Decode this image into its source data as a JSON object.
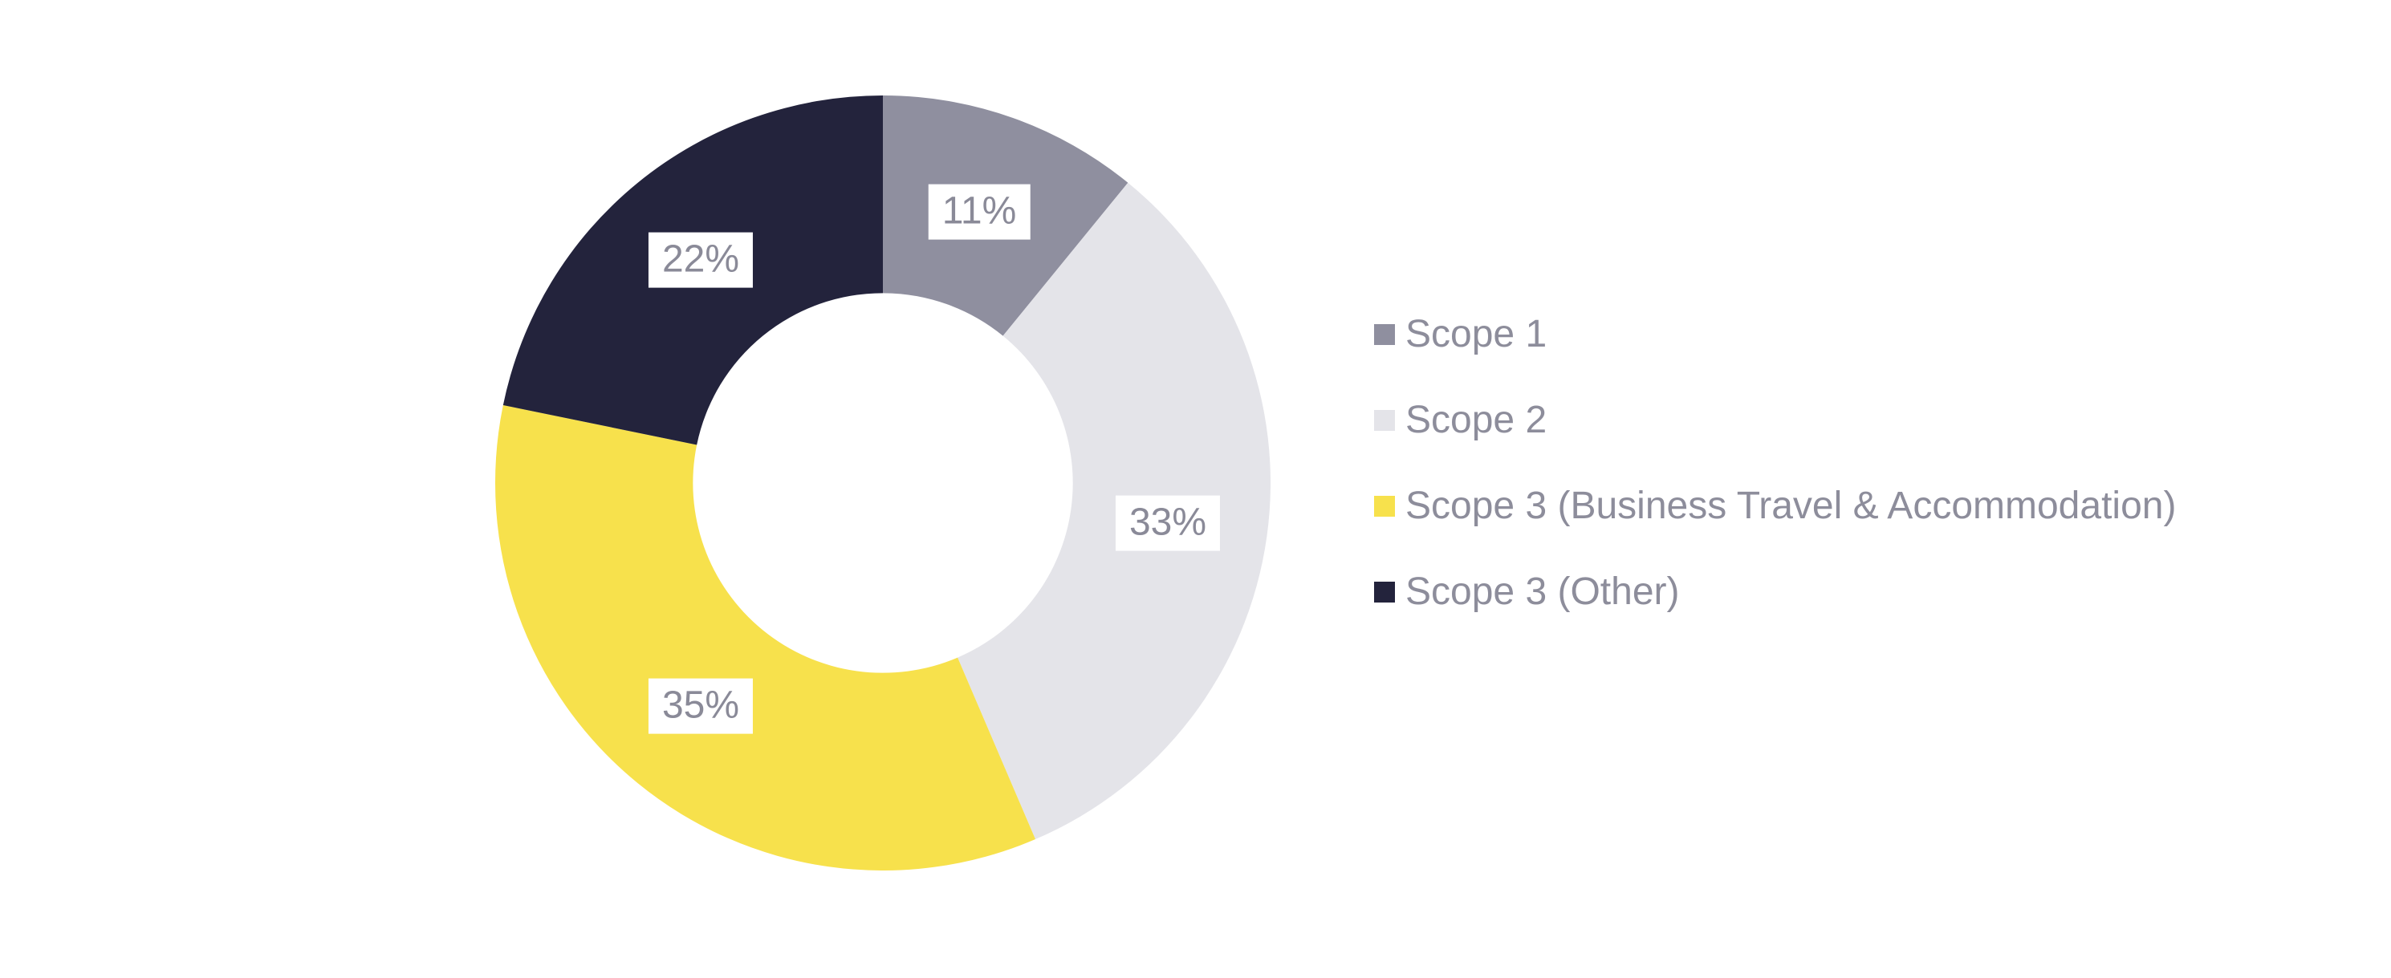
{
  "page": {
    "background_color": "#ffffff"
  },
  "chart_data": {
    "type": "pie",
    "subtype": "donut",
    "title": "",
    "direction": "clockwise",
    "start_angle_deg": 0,
    "inner_radius_ratio": 0.49,
    "legend_position": "right",
    "grid": false,
    "categories": [
      "Scope 1",
      "Scope 2",
      "Scope 3 (Business Travel & Accommodation)",
      "Scope 3 (Other)"
    ],
    "values": [
      11,
      33,
      35,
      22
    ],
    "segments": [
      {
        "label": "Scope 1",
        "value": 11,
        "display": "11%",
        "color": "#8f8f9f"
      },
      {
        "label": "Scope 2",
        "value": 33,
        "display": "33%",
        "color": "#e4e4e9"
      },
      {
        "label": "Scope 3 (Business Travel & Accommodation)",
        "value": 35,
        "display": "35%",
        "color": "#f7e14c"
      },
      {
        "label": "Scope 3 (Other)",
        "value": 22,
        "display": "22%",
        "color": "#23233c"
      }
    ],
    "value_label_style": {
      "background": "#ffffff",
      "text_color": "#8a8a98"
    },
    "legend_text_color": "#8d8d9b"
  }
}
